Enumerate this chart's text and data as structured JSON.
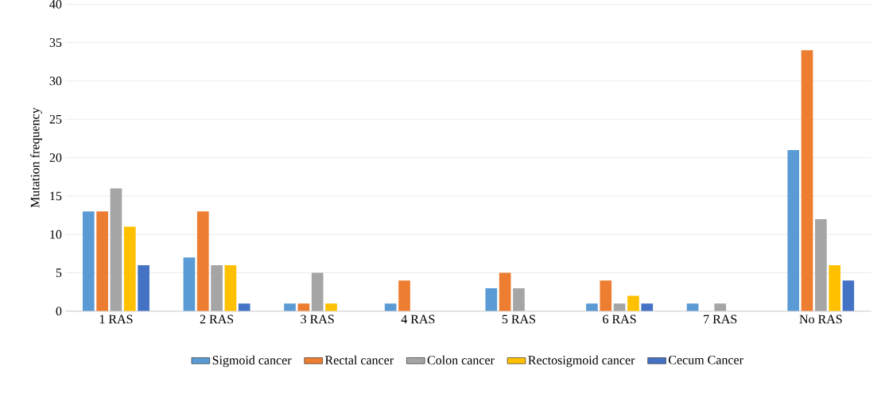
{
  "chart_data": {
    "type": "bar",
    "ylabel": "Mutation frequency",
    "categories": [
      "1 RAS",
      "2 RAS",
      "3 RAS",
      "4 RAS",
      "5 RAS",
      "6 RAS",
      "7 RAS",
      "No RAS"
    ],
    "series": [
      {
        "name": "Sigmoid cancer",
        "color": "#5b9bd5",
        "values": [
          13,
          7,
          1,
          1,
          3,
          1,
          1,
          21
        ]
      },
      {
        "name": "Rectal cancer",
        "color": "#ed7d31",
        "values": [
          13,
          13,
          1,
          4,
          5,
          4,
          0,
          34
        ]
      },
      {
        "name": "Colon cancer",
        "color": "#a5a5a5",
        "values": [
          16,
          6,
          5,
          0,
          3,
          1,
          1,
          12
        ]
      },
      {
        "name": "Rectosigmoid cancer",
        "color": "#ffc000",
        "values": [
          11,
          6,
          1,
          0,
          0,
          2,
          0,
          6
        ]
      },
      {
        "name": "Cecum Cancer",
        "color": "#4472c4",
        "values": [
          6,
          1,
          0,
          0,
          0,
          1,
          0,
          4
        ]
      }
    ],
    "ylim": [
      0,
      40
    ],
    "yticks": [
      0,
      5,
      10,
      15,
      20,
      25,
      30,
      35,
      40
    ],
    "grid": "y",
    "legend": "bottom"
  }
}
